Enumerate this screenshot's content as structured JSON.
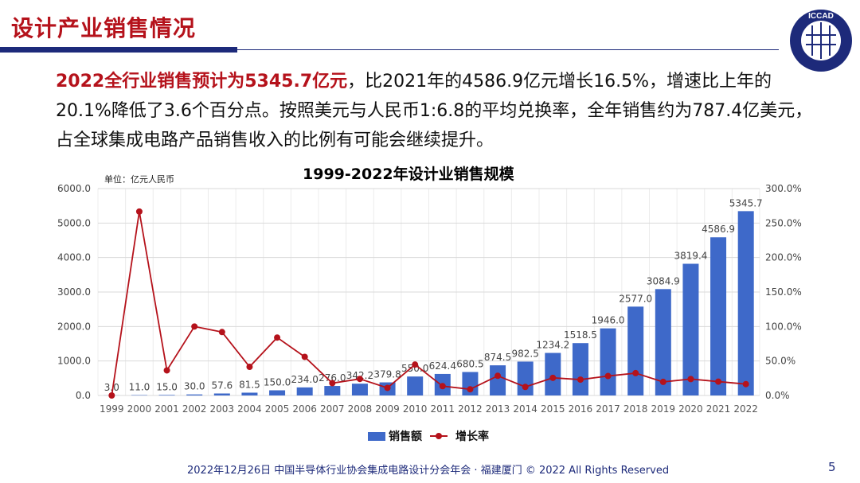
{
  "slide": {
    "title": "设计产业销售情况",
    "logo_text": "ICCAD",
    "paragraph_highlight": "2022全行业销售预计为5345.7亿元",
    "paragraph_rest": "，比2021年的4586.9亿元增长16.5%，增速比上年的20.1%降低了3.6个百分点。按照美元与人民币1:6.8的平均兑换率，全年销售约为787.4亿美元，占全球集成电路产品销售收入的比例有可能会继续提升。",
    "footer": "2022年12月26日 中国半导体行业协会集成电路设计分会年会 · 福建厦门 © 2022 All Rights Reserved",
    "page_number": "5",
    "colors": {
      "title": "#b5121b",
      "rule": "#1d2a7a",
      "bar": "#3e69c9",
      "line": "#b5121b"
    }
  },
  "chart_data": {
    "type": "bar+line",
    "title": "1999-2022年设计业销售规模",
    "unit_label": "单位：亿元人民币",
    "categories": [
      "1999",
      "2000",
      "2001",
      "2002",
      "2003",
      "2004",
      "2005",
      "2006",
      "2007",
      "2008",
      "2009",
      "2010",
      "2011",
      "2012",
      "2013",
      "2014",
      "2015",
      "2016",
      "2017",
      "2018",
      "2019",
      "2020",
      "2021",
      "2022"
    ],
    "series": [
      {
        "name": "销售额",
        "type": "bar",
        "axis": "left",
        "values": [
          3.0,
          11.0,
          15.0,
          30.0,
          57.6,
          81.5,
          150.0,
          234.0,
          276.0,
          342.2,
          379.8,
          550.0,
          624.4,
          680.5,
          874.5,
          982.5,
          1234.2,
          1518.5,
          1946.0,
          2577.0,
          3084.9,
          3819.4,
          4586.9,
          5345.7
        ],
        "labels": [
          "3.0",
          "11.0",
          "15.0",
          "30.0",
          "57.6",
          "81.5",
          "150.0",
          "234.0",
          "276.0",
          "342.2",
          "379.8",
          "550.0",
          "624.4",
          "680.5",
          "874.5",
          "982.5",
          "1234.2",
          "1518.5",
          "1946.0",
          "2577.0",
          "3084.9",
          "3819.4",
          "4586.9",
          "5345.7"
        ]
      },
      {
        "name": "增长率",
        "type": "line",
        "axis": "right",
        "values": [
          0,
          266.7,
          36.4,
          100.0,
          92.0,
          41.5,
          84.0,
          56.0,
          17.9,
          24.0,
          11.0,
          44.8,
          13.5,
          9.0,
          28.5,
          12.4,
          25.6,
          23.0,
          28.2,
          32.4,
          19.7,
          23.8,
          20.1,
          16.5
        ]
      }
    ],
    "left_axis": {
      "min": 0,
      "max": 6000,
      "ticks": [
        "0.0",
        "1000.0",
        "2000.0",
        "3000.0",
        "4000.0",
        "5000.0",
        "6000.0"
      ]
    },
    "right_axis": {
      "min": 0,
      "max": 300,
      "ticks": [
        "0.0%",
        "50.0%",
        "100.0%",
        "150.0%",
        "200.0%",
        "250.0%",
        "300.0%"
      ]
    },
    "grid": true,
    "legend_position": "bottom"
  }
}
